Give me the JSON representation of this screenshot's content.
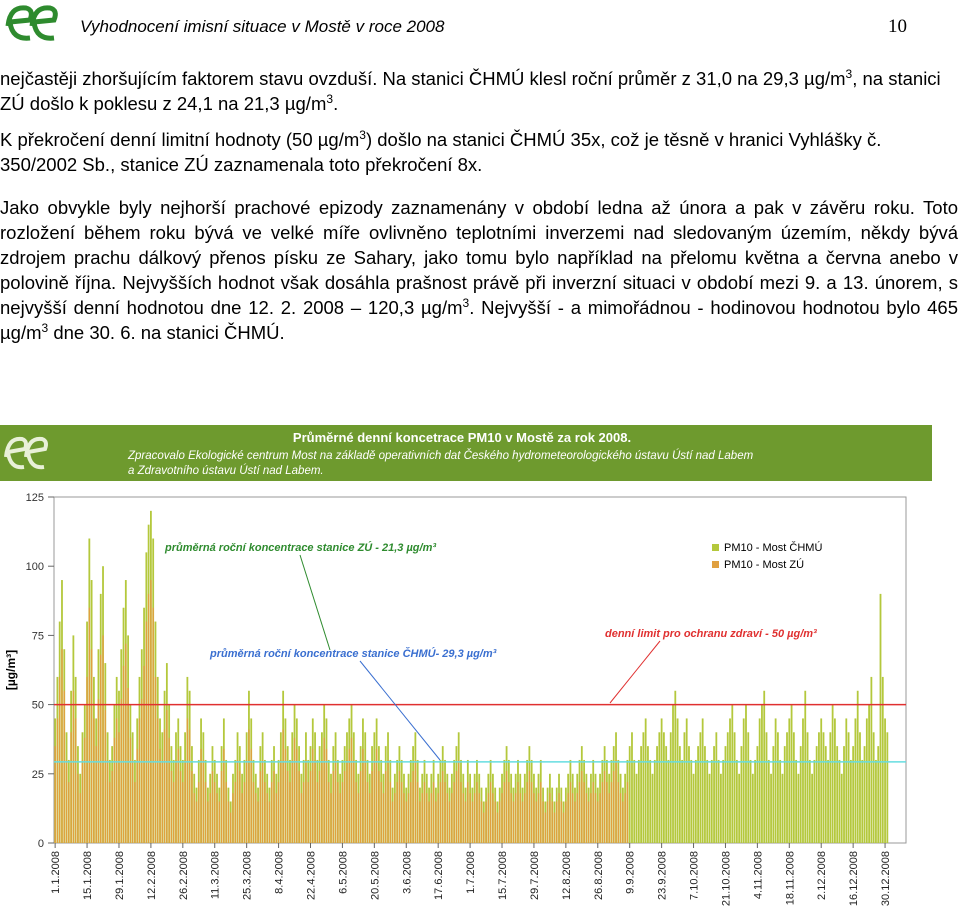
{
  "header": {
    "title": "Vyhodnocení imisní situace v Mostě v roce 2008",
    "page_number": "10"
  },
  "paragraphs": [
    {
      "runs": [
        "nejčastěji zhoršujícím faktorem stavu ovzduší. Na stanici ČHMÚ klesl roční průměr z 31,0 na 29,3 µg/m",
        {
          "sup": "3"
        },
        ", na stanici ZÚ došlo k poklesu z 24,1 na 21,3 µg/m",
        {
          "sup": "3"
        },
        "."
      ]
    },
    {
      "runs": [
        "K překročení denní limitní hodnoty (50 µg/m",
        {
          "sup": "3"
        },
        ") došlo na stanici ČHMÚ 35x, což je těsně v hranici Vyhlášky č. 350/2002 Sb., stanice ZÚ zaznamenala toto překročení 8x."
      ]
    },
    {
      "runs": [
        "Jako obvykle byly nejhorší prachové epizody zaznamenány v období ledna až února a pak v závěru roku. Toto rozložení během roku bývá ve velké míře ovlivněno teplotními inverzemi nad sledovaným územím, někdy bývá zdrojem prachu dálkový přenos písku ze Sahary, jako tomu bylo například na přelomu května a června anebo v polovině října. Nejvyšších hodnot však dosáhla prašnost právě při inverzní situaci v období mezi 9. a 13. únorem, s nejvyšší denní hodnotou dne 12. 2. 2008 – 120,3 µg/m",
        {
          "sup": "3"
        },
        ". Nejvyšší - a mimořádnou - hodinovou hodnotou bylo 465 µg/m",
        {
          "sup": "3"
        },
        " dne 30. 6. na stanici ČHMÚ."
      ]
    }
  ],
  "chart_data": {
    "type": "bar",
    "title": "Průměrné denní koncetrace PM10 v Mostě za rok 2008.",
    "subtitle": [
      "Zpracovalo Ekologické centrum Most na základě operativních dat Českého hydrometeorologického ústavu Ústí nad Labem",
      "a Zdravotního ústavu Ústí nad Labem."
    ],
    "y_label": "[µg/m³]",
    "ylim": [
      0,
      125
    ],
    "yticks": [
      0,
      25,
      50,
      75,
      100,
      125
    ],
    "xlim": [
      0,
      366
    ],
    "xticks": [
      {
        "value": 0,
        "label": "1.1.2008"
      },
      {
        "value": 14,
        "label": "15.1.2008"
      },
      {
        "value": 28,
        "label": "29.1.2008"
      },
      {
        "value": 42,
        "label": "12.2.2008"
      },
      {
        "value": 56,
        "label": "26.2.2008"
      },
      {
        "value": 70,
        "label": "11.3.2008"
      },
      {
        "value": 84,
        "label": "25.3.2008"
      },
      {
        "value": 98,
        "label": "8.4.2008"
      },
      {
        "value": 112,
        "label": "22.4.2008"
      },
      {
        "value": 126,
        "label": "6.5.2008"
      },
      {
        "value": 140,
        "label": "20.5.2008"
      },
      {
        "value": 154,
        "label": "3.6.2008"
      },
      {
        "value": 168,
        "label": "17.6.2008"
      },
      {
        "value": 182,
        "label": "1.7.2008"
      },
      {
        "value": 196,
        "label": "15.7.2008"
      },
      {
        "value": 210,
        "label": "29.7.2008"
      },
      {
        "value": 224,
        "label": "12.8.2008"
      },
      {
        "value": 238,
        "label": "26.8.2008"
      },
      {
        "value": 252,
        "label": "9.9.2008"
      },
      {
        "value": 266,
        "label": "23.9.2008"
      },
      {
        "value": 280,
        "label": "7.10.2008"
      },
      {
        "value": 294,
        "label": "21.10.2008"
      },
      {
        "value": 308,
        "label": "4.11.2008"
      },
      {
        "value": 322,
        "label": "18.11.2008"
      },
      {
        "value": 336,
        "label": "2.12.2008"
      },
      {
        "value": 350,
        "label": "16.12.2008"
      },
      {
        "value": 364,
        "label": "30.12.2008"
      }
    ],
    "reference_lines": [
      {
        "value": 50,
        "color": "#e03030"
      },
      {
        "value": 29.3,
        "color": "#66dde0"
      }
    ],
    "annotations": [
      "průměrná roční koncentrace stanice ZÚ - 21,3 µg/m³",
      "průměrná roční koncentrace stanice ČHMÚ- 29,3 µg/m³",
      "denní limit pro ochranu zdraví - 50 µg/m³"
    ],
    "series": [
      {
        "name": "PM10 - Most ČHMÚ",
        "color": "#b4c83c",
        "values": [
          45,
          60,
          80,
          95,
          70,
          40,
          30,
          55,
          75,
          60,
          35,
          25,
          40,
          50,
          80,
          110,
          95,
          60,
          45,
          70,
          90,
          100,
          65,
          40,
          30,
          35,
          50,
          60,
          55,
          70,
          85,
          95,
          75,
          50,
          40,
          30,
          45,
          60,
          70,
          85,
          105,
          115,
          120,
          110,
          80,
          60,
          45,
          40,
          55,
          65,
          50,
          35,
          30,
          40,
          45,
          35,
          30,
          40,
          60,
          55,
          35,
          25,
          20,
          30,
          45,
          40,
          30,
          20,
          25,
          35,
          30,
          25,
          20,
          35,
          45,
          30,
          20,
          15,
          25,
          30,
          40,
          35,
          25,
          30,
          40,
          55,
          45,
          30,
          25,
          20,
          35,
          40,
          30,
          25,
          20,
          30,
          35,
          25,
          30,
          40,
          55,
          45,
          35,
          30,
          40,
          50,
          45,
          35,
          25,
          30,
          40,
          30,
          35,
          45,
          40,
          30,
          35,
          40,
          50,
          45,
          30,
          25,
          35,
          40,
          30,
          25,
          30,
          35,
          40,
          45,
          50,
          40,
          30,
          25,
          35,
          45,
          40,
          30,
          25,
          35,
          40,
          45,
          35,
          30,
          25,
          35,
          40,
          30,
          20,
          25,
          30,
          35,
          30,
          25,
          20,
          25,
          30,
          35,
          40,
          30,
          20,
          25,
          30,
          25,
          20,
          25,
          30,
          20,
          25,
          30,
          35,
          30,
          25,
          20,
          25,
          30,
          35,
          40,
          30,
          25,
          20,
          30,
          25,
          20,
          25,
          30,
          25,
          20,
          15,
          20,
          25,
          30,
          25,
          20,
          15,
          20,
          25,
          30,
          35,
          30,
          25,
          20,
          25,
          30,
          25,
          20,
          25,
          30,
          35,
          30,
          25,
          20,
          25,
          30,
          20,
          15,
          20,
          25,
          20,
          15,
          20,
          25,
          20,
          15,
          20,
          25,
          30,
          25,
          20,
          25,
          30,
          35,
          30,
          25,
          20,
          25,
          30,
          25,
          20,
          25,
          30,
          35,
          30,
          25,
          30,
          35,
          40,
          30,
          25,
          20,
          25,
          30,
          35,
          40,
          30,
          25,
          30,
          35,
          40,
          45,
          35,
          30,
          25,
          30,
          35,
          40,
          45,
          40,
          35,
          30,
          40,
          50,
          55,
          45,
          35,
          30,
          40,
          45,
          35,
          30,
          25,
          30,
          35,
          40,
          45,
          35,
          30,
          25,
          30,
          35,
          40,
          30,
          25,
          30,
          35,
          40,
          45,
          50,
          40,
          30,
          25,
          35,
          45,
          50,
          40,
          30,
          25,
          30,
          35,
          45,
          50,
          55,
          40,
          30,
          25,
          35,
          45,
          40,
          30,
          25,
          35,
          40,
          45,
          50,
          40,
          30,
          25,
          35,
          45,
          55,
          40,
          30,
          25,
          30,
          35,
          40,
          45,
          40,
          35,
          30,
          40,
          50,
          45,
          35,
          30,
          25,
          35,
          45,
          40,
          30,
          35,
          45,
          55,
          40,
          30,
          35,
          45,
          50,
          60,
          40,
          30,
          35,
          90,
          60,
          45,
          40
        ]
      },
      {
        "name": "PM10 - Most ZÚ",
        "color": "#e0a040",
        "values": [
          35,
          45,
          60,
          70,
          55,
          30,
          22,
          40,
          55,
          45,
          25,
          18,
          30,
          38,
          60,
          85,
          70,
          45,
          35,
          52,
          68,
          75,
          48,
          30,
          22,
          26,
          38,
          45,
          40,
          52,
          64,
          72,
          56,
          38,
          30,
          22,
          34,
          45,
          52,
          64,
          80,
          90,
          95,
          85,
          60,
          45,
          34,
          30,
          41,
          48,
          38,
          26,
          22,
          30,
          34,
          26,
          22,
          30,
          45,
          41,
          26,
          18,
          15,
          22,
          34,
          30,
          22,
          15,
          18,
          26,
          22,
          18,
          15,
          26,
          34,
          22,
          15,
          11,
          18,
          22,
          30,
          26,
          18,
          22,
          30,
          41,
          34,
          22,
          18,
          15,
          26,
          30,
          22,
          18,
          15,
          22,
          26,
          18,
          22,
          30,
          41,
          34,
          26,
          22,
          30,
          38,
          34,
          26,
          18,
          22,
          30,
          22,
          26,
          34,
          30,
          22,
          26,
          30,
          38,
          34,
          22,
          18,
          26,
          30,
          22,
          18,
          22,
          26,
          30,
          34,
          38,
          30,
          22,
          18,
          26,
          34,
          30,
          22,
          18,
          26,
          30,
          34,
          26,
          22,
          18,
          26,
          30,
          22,
          15,
          18,
          22,
          26,
          22,
          18,
          15,
          18,
          22,
          26,
          30,
          22,
          15,
          18,
          22,
          18,
          15,
          18,
          22,
          15,
          18,
          22,
          26,
          22,
          18,
          15,
          18,
          22,
          26,
          30,
          22,
          18,
          15,
          22,
          18,
          15,
          18,
          22,
          18,
          15,
          11,
          15,
          18,
          22,
          18,
          15,
          11,
          15,
          18,
          22,
          26,
          22,
          18,
          15,
          18,
          22,
          18,
          15,
          18,
          22,
          26,
          22,
          18,
          15,
          18,
          22,
          15,
          11,
          15,
          18,
          15,
          11,
          15,
          18,
          15,
          11,
          15,
          18,
          22,
          18,
          15,
          18,
          22,
          26,
          22,
          18,
          15,
          18,
          22,
          18,
          15,
          18,
          22,
          26,
          22,
          18,
          22,
          26,
          30,
          22,
          18,
          15,
          18,
          22,
          null,
          null,
          null,
          null,
          null,
          null,
          null,
          null,
          null,
          null,
          null,
          null,
          null,
          null,
          null,
          null,
          null,
          null,
          null,
          null,
          null,
          null,
          null,
          null,
          null,
          null,
          null,
          null,
          null,
          null,
          null,
          null,
          null,
          null,
          null,
          null,
          null,
          null,
          null,
          null,
          null,
          null,
          null,
          null,
          null,
          null,
          null,
          null,
          null,
          null,
          null,
          null,
          null,
          null,
          null,
          null,
          null,
          null,
          null,
          null,
          null,
          null,
          null,
          null,
          null,
          null,
          null,
          null,
          null,
          null,
          null,
          null,
          null,
          null,
          null,
          null,
          null,
          null,
          null,
          null,
          null,
          null,
          null,
          null,
          null,
          null,
          null,
          null,
          null,
          null,
          null,
          null,
          null,
          null,
          null,
          null,
          null,
          null,
          null,
          null,
          null,
          null,
          null,
          null,
          null,
          null,
          null,
          null,
          null,
          null,
          null,
          null,
          null,
          null
        ]
      }
    ]
  }
}
